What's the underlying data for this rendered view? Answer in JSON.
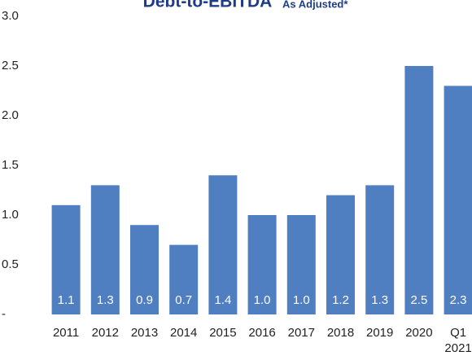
{
  "chart_data": {
    "type": "bar",
    "title": "Debt-to-EBITDA",
    "subtitle": "As Adjusted*",
    "categories": [
      "2011",
      "2012",
      "2013",
      "2014",
      "2015",
      "2016",
      "2017",
      "2018",
      "2019",
      "2020",
      "Q1\n2021"
    ],
    "values": [
      1.1,
      1.3,
      0.9,
      0.7,
      1.4,
      1.0,
      1.0,
      1.2,
      1.3,
      2.5,
      2.3
    ],
    "value_labels": [
      "1.1",
      "1.3",
      "0.9",
      "0.7",
      "1.4",
      "1.0",
      "1.0",
      "1.2",
      "1.3",
      "2.5",
      "2.3"
    ],
    "color": "#4f7ec1",
    "ylim": [
      0,
      3
    ],
    "yticks": [
      {
        "value": 0,
        "label": "-"
      },
      0.5,
      {
        "value": 1,
        "label": "1.0"
      },
      1.5,
      {
        "value": 2,
        "label": "2.0"
      },
      2.5,
      {
        "value": 3,
        "label": "3.0"
      }
    ],
    "grid": false
  }
}
